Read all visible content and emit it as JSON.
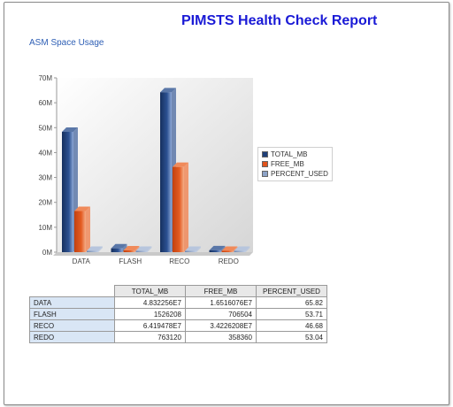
{
  "report": {
    "title": "PIMSTS Health Check Report",
    "section_title": "ASM Space Usage"
  },
  "chart_data": {
    "type": "bar",
    "categories": [
      "DATA",
      "FLASH",
      "RECO",
      "REDO"
    ],
    "series": [
      {
        "name": "TOTAL_MB",
        "values": [
          48322560,
          1526208,
          64194780,
          763120
        ],
        "color": "#1f3f78"
      },
      {
        "name": "FREE_MB",
        "values": [
          16516076,
          706504,
          34226208,
          358360
        ],
        "color": "#e0531c"
      },
      {
        "name": "PERCENT_USED",
        "values": [
          65.82,
          53.71,
          46.68,
          53.04
        ],
        "color": "#8da3c7"
      }
    ],
    "ylim": [
      0,
      70000000
    ],
    "yticks": [
      "0M",
      "10M",
      "20M",
      "30M",
      "40M",
      "50M",
      "60M",
      "70M"
    ],
    "legend": "right",
    "grid": false
  },
  "table": {
    "headers": [
      "TOTAL_MB",
      "FREE_MB",
      "PERCENT_USED"
    ],
    "rows": [
      {
        "name": "DATA",
        "total": "4.832256E7",
        "free": "1.6516076E7",
        "pct": "65.82"
      },
      {
        "name": "FLASH",
        "total": "1526208",
        "free": "706504",
        "pct": "53.71"
      },
      {
        "name": "RECO",
        "total": "6.419478E7",
        "free": "3.4226208E7",
        "pct": "46.68"
      },
      {
        "name": "REDO",
        "total": "763120",
        "free": "358360",
        "pct": "53.04"
      }
    ]
  }
}
